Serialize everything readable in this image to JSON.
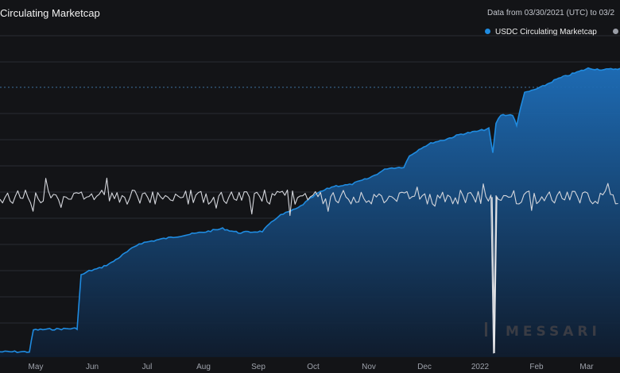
{
  "header": {
    "title": "Circulating Marketcap",
    "range_text": "Data from 03/30/2021 (UTC) to 03/2"
  },
  "legend": [
    {
      "label": "USDC Circulating Marketcap",
      "color": "#1f8be0"
    },
    {
      "label": "",
      "color": "#9a9da6"
    }
  ],
  "watermark": "MESSARI",
  "colors": {
    "background": "#131417",
    "area_top": "#1e6fbb",
    "area_bottom": "#0f1c2e",
    "line": "#1f8be0",
    "secondary_line": "#d4d6dc",
    "grid": "#2a2c33"
  },
  "chart_data": {
    "type": "area",
    "x_axis": {
      "ticks": [
        "May",
        "Jun",
        "Jul",
        "Aug",
        "Sep",
        "Oct",
        "Nov",
        "Dec",
        "2022",
        "Feb",
        "Mar"
      ]
    },
    "grid": true,
    "reference_line": "dotted horizontal line near the top",
    "series": [
      {
        "name": "USDC Circulating Marketcap",
        "kind": "area",
        "points": [
          [
            0,
            0.005
          ],
          [
            37,
            0.005
          ],
          [
            42,
            0.085
          ],
          [
            92,
            0.09
          ],
          [
            97,
            0.09
          ],
          [
            102,
            0.285
          ],
          [
            112,
            0.3
          ],
          [
            125,
            0.31
          ],
          [
            140,
            0.33
          ],
          [
            160,
            0.37
          ],
          [
            175,
            0.4
          ],
          [
            200,
            0.415
          ],
          [
            230,
            0.43
          ],
          [
            262,
            0.445
          ],
          [
            280,
            0.455
          ],
          [
            300,
            0.44
          ],
          [
            330,
            0.445
          ],
          [
            350,
            0.5
          ],
          [
            375,
            0.53
          ],
          [
            400,
            0.585
          ],
          [
            420,
            0.61
          ],
          [
            440,
            0.615
          ],
          [
            465,
            0.64
          ],
          [
            487,
            0.675
          ],
          [
            508,
            0.68
          ],
          [
            515,
            0.72
          ],
          [
            530,
            0.75
          ],
          [
            545,
            0.77
          ],
          [
            560,
            0.78
          ],
          [
            580,
            0.8
          ],
          [
            600,
            0.81
          ],
          [
            615,
            0.82
          ],
          [
            620,
            0.73
          ],
          [
            624,
            0.84
          ],
          [
            630,
            0.87
          ],
          [
            645,
            0.87
          ],
          [
            650,
            0.83
          ],
          [
            655,
            0.9
          ],
          [
            660,
            0.95
          ],
          [
            680,
            0.97
          ],
          [
            700,
            1.0
          ],
          [
            720,
            1.02
          ],
          [
            740,
            1.04
          ],
          [
            760,
            1.035
          ],
          [
            780,
            1.04
          ]
        ]
      },
      {
        "name": "",
        "kind": "line",
        "mean": 0.57,
        "amplitude": 0.03,
        "dip": {
          "x": 622,
          "value": 0.0
        }
      }
    ]
  }
}
